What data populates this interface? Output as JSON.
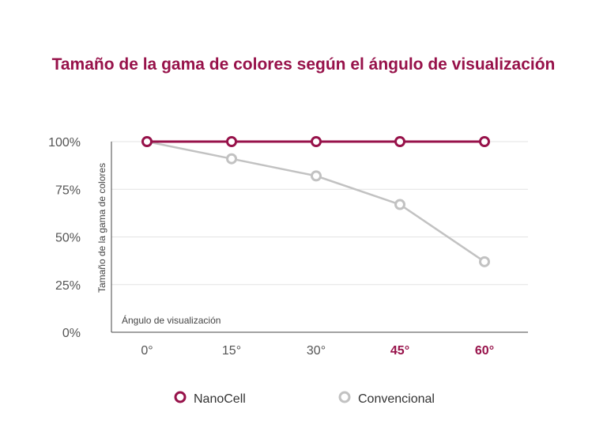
{
  "chart_data": {
    "type": "line",
    "title": "Tamaño de la gama de colores según el ángulo de visualización",
    "xlabel": "Ángulo de visualización",
    "ylabel": "Tamaño de la gama de colores",
    "categories": [
      "0°",
      "15°",
      "30°",
      "45°",
      "60°"
    ],
    "highlighted_categories": [
      "45°",
      "60°"
    ],
    "yticks": [
      "0%",
      "25%",
      "50%",
      "75%",
      "100%"
    ],
    "ylim": [
      0,
      100
    ],
    "grid": true,
    "legend_position": "bottom",
    "series": [
      {
        "name": "NanoCell",
        "values": [
          100,
          100,
          100,
          100,
          100
        ],
        "color": "#97124a"
      },
      {
        "name": "Convencional",
        "values": [
          100,
          91,
          82,
          67,
          37
        ],
        "color": "#c2c2c2"
      }
    ]
  },
  "colors": {
    "accent": "#97124a",
    "muted": "#c2c2c2",
    "text": "#555555"
  }
}
